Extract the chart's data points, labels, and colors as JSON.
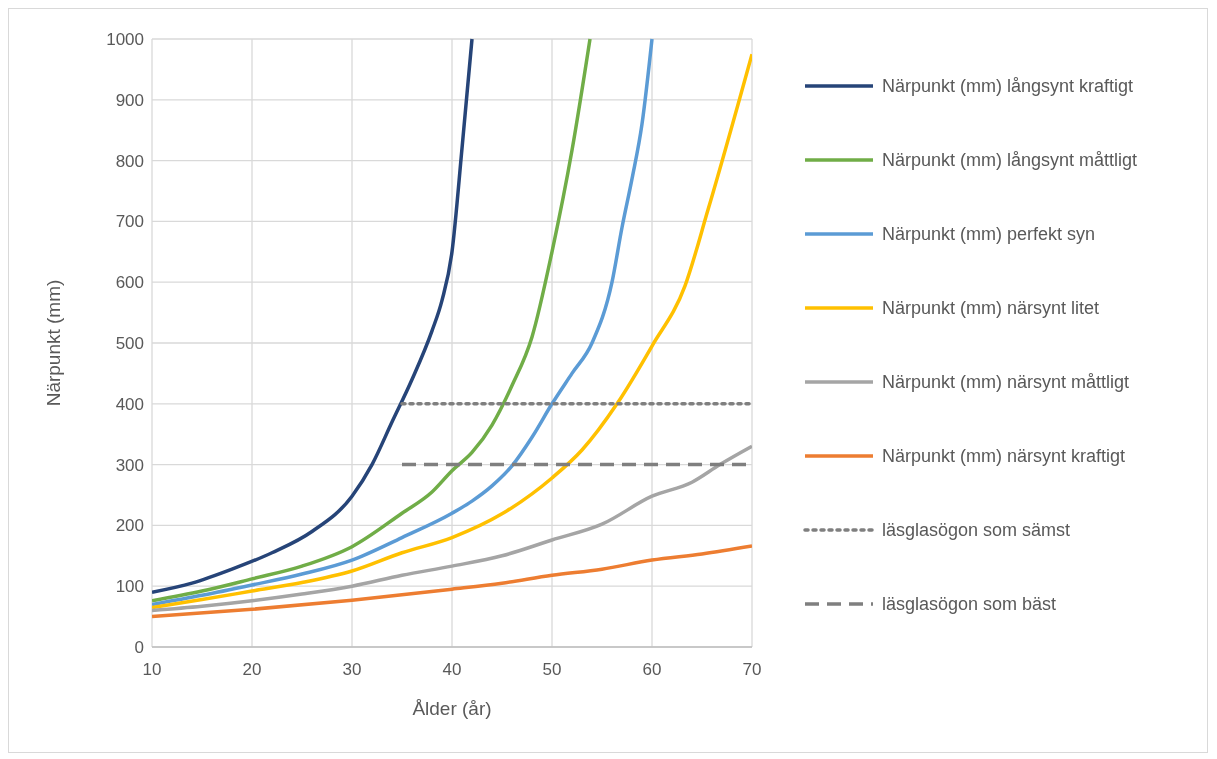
{
  "chart_data": {
    "type": "line",
    "xlabel": "Ålder (år)",
    "ylabel": "Närpunkt (mm)",
    "xlim": [
      10,
      70
    ],
    "xticks": [
      10,
      20,
      30,
      40,
      50,
      60,
      70
    ],
    "ylim": [
      0,
      1000
    ],
    "yticks": [
      0,
      100,
      200,
      300,
      400,
      500,
      600,
      700,
      800,
      900,
      1000
    ],
    "grid": true,
    "legend": "right",
    "marker": "none",
    "series": [
      {
        "name": "Närpunkt (mm) långsynt kraftigt",
        "color": "#264478",
        "x": [
          10,
          14,
          18,
          22,
          26,
          30,
          32,
          34,
          36,
          38,
          39,
          40,
          41,
          42
        ],
        "values": [
          90,
          105,
          128,
          155,
          190,
          248,
          300,
          370,
          440,
          520,
          570,
          650,
          820,
          1000
        ]
      },
      {
        "name": "Närpunkt (mm) långsynt måttligt",
        "color": "#70ad47",
        "x": [
          10,
          15,
          20,
          25,
          30,
          35,
          38,
          40,
          42,
          44,
          46,
          48,
          50,
          52,
          53.8
        ],
        "values": [
          76,
          92,
          112,
          133,
          165,
          220,
          255,
          290,
          320,
          365,
          430,
          510,
          650,
          817,
          1000
        ]
      },
      {
        "name": "Närpunkt (mm) perfekt syn",
        "color": "#5b9bd5",
        "x": [
          10,
          15,
          20,
          25,
          30,
          35,
          40,
          42,
          44,
          46,
          48,
          50,
          52,
          54,
          56,
          57,
          58,
          59,
          60
        ],
        "values": [
          70,
          85,
          102,
          120,
          143,
          180,
          220,
          240,
          265,
          298,
          345,
          400,
          450,
          500,
          600,
          690,
          770,
          860,
          1000
        ]
      },
      {
        "name": "Närpunkt (mm) närsynt litet",
        "color": "#ffc000",
        "x": [
          10,
          15,
          20,
          25,
          30,
          35,
          40,
          45,
          50,
          53,
          56.5,
          60,
          63.3,
          65.6,
          70
        ],
        "values": [
          65,
          78,
          92,
          106,
          125,
          155,
          180,
          219,
          278,
          324,
          400,
          495,
          594,
          719,
          975
        ]
      },
      {
        "name": "Närpunkt (mm) närsynt måttligt",
        "color": "#a5a5a5",
        "x": [
          10,
          15,
          20,
          25,
          30,
          35,
          40,
          45,
          50,
          55,
          60,
          64,
          66.8,
          70
        ],
        "values": [
          60,
          67,
          76,
          87,
          100,
          118,
          133,
          150,
          176,
          202,
          248,
          271,
          300,
          330
        ]
      },
      {
        "name": "Närpunkt (mm) närsynt kraftigt",
        "color": "#ed7d31",
        "x": [
          10,
          20,
          30,
          40,
          45,
          50,
          55,
          60,
          65,
          70
        ],
        "values": [
          50,
          62,
          77,
          95,
          105,
          118,
          128,
          143,
          153,
          166
        ]
      },
      {
        "name": "läsglasögon som sämst",
        "color": "#7f7f7f",
        "line_style": "dotted",
        "x": [
          35,
          70
        ],
        "values": [
          400,
          400
        ]
      },
      {
        "name": "läsglasögon som bäst",
        "color": "#7f7f7f",
        "line_style": "dashed",
        "x": [
          35,
          70
        ],
        "values": [
          300,
          300
        ]
      }
    ]
  }
}
